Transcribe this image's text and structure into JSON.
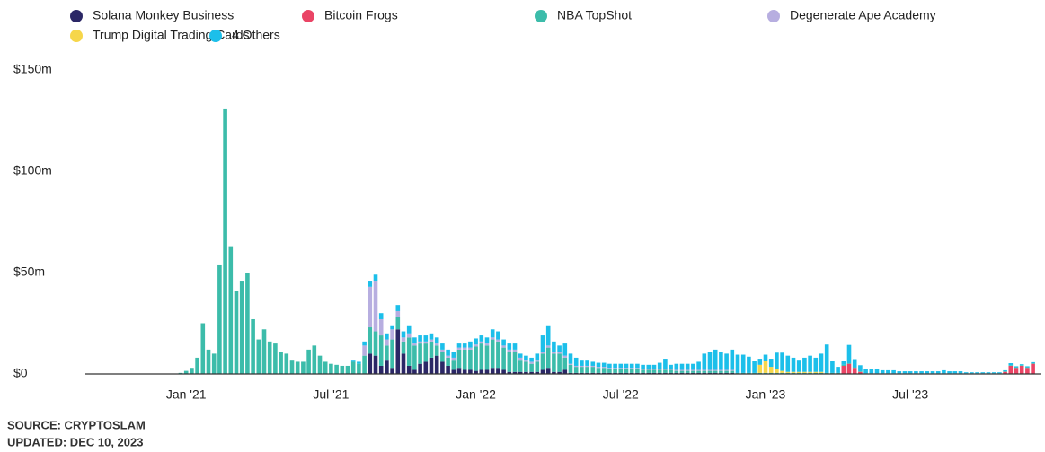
{
  "chart_data": {
    "type": "stacked_bar",
    "categories": [
      null,
      "Jan '21",
      null,
      null,
      null,
      null,
      null,
      null,
      null,
      null,
      null,
      null,
      null,
      null,
      null,
      null,
      null,
      null,
      null,
      null,
      null,
      null,
      null,
      null,
      null,
      null,
      null,
      "Jul '21",
      null,
      null,
      null,
      null,
      null,
      null,
      null,
      null,
      null,
      null,
      null,
      null,
      null,
      null,
      null,
      null,
      null,
      null,
      null,
      null,
      null,
      null,
      null,
      null,
      null,
      "Jan '22",
      null,
      null,
      null,
      null,
      null,
      null,
      null,
      null,
      null,
      null,
      null,
      null,
      null,
      null,
      null,
      null,
      null,
      null,
      null,
      null,
      null,
      null,
      null,
      null,
      null,
      "Jul '22",
      null,
      null,
      null,
      null,
      null,
      null,
      null,
      null,
      null,
      null,
      null,
      null,
      null,
      null,
      null,
      null,
      null,
      null,
      null,
      null,
      null,
      null,
      null,
      null,
      null,
      "Jan '23",
      null,
      null,
      null,
      null,
      null,
      null,
      null,
      null,
      null,
      null,
      null,
      null,
      null,
      null,
      null,
      null,
      null,
      null,
      null,
      null,
      null,
      null,
      null,
      null,
      null,
      "Jul '23",
      null,
      null,
      null,
      null,
      null,
      null,
      null,
      null,
      null,
      null,
      null,
      null,
      null,
      null,
      null,
      null,
      null,
      null,
      null,
      null,
      null,
      null
    ],
    "ylim": [
      0,
      150
    ],
    "yticks": [
      {
        "value": 0,
        "label": "$0"
      },
      {
        "value": 50,
        "label": "$50m"
      },
      {
        "value": 100,
        "label": "$100m"
      },
      {
        "value": 150,
        "label": "$150m"
      }
    ],
    "grid": false,
    "series": [
      {
        "name": "Solana Monkey Business",
        "color": "#2b2766",
        "values": [
          0,
          0,
          0,
          0,
          0,
          0,
          0,
          0,
          0,
          0,
          0,
          0,
          0,
          0,
          0,
          0,
          0,
          0,
          0,
          0,
          0,
          0,
          0,
          0,
          0,
          0,
          0,
          0,
          0,
          0,
          0,
          0,
          0,
          0,
          10,
          9,
          4,
          7,
          3,
          22,
          10,
          4,
          2,
          5,
          6,
          8,
          9,
          6,
          4,
          2,
          3,
          2,
          2,
          1.5,
          2,
          2,
          3,
          3,
          2,
          1,
          1,
          1,
          1,
          1,
          1,
          2,
          3,
          1,
          1,
          2,
          0.5,
          0.5,
          0.5,
          0.5,
          0.5,
          0.5,
          0.5,
          0.5,
          0.5,
          0.5,
          0.5,
          0.5,
          0.5,
          0.5,
          0.5,
          0.5,
          0.5,
          0.5,
          0.5,
          0.5,
          0.5,
          0.5,
          0.5,
          0.5,
          0.5,
          0.5,
          0.5,
          0.5,
          0.5,
          0.5,
          0,
          0,
          0,
          0,
          0,
          0,
          0,
          0,
          0,
          0,
          0,
          0,
          0,
          0,
          0,
          0,
          0,
          0,
          0,
          0,
          0,
          0,
          0,
          0,
          0,
          0,
          0,
          0,
          0,
          0,
          0,
          0,
          0,
          0,
          0,
          0,
          0,
          0,
          0,
          0,
          0,
          0,
          0,
          0,
          0,
          0,
          0,
          0,
          0,
          0,
          0,
          0,
          0,
          0
        ]
      },
      {
        "name": "Bitcoin Frogs",
        "color": "#ea4465",
        "values": [
          0,
          0,
          0,
          0,
          0,
          0,
          0,
          0,
          0,
          0,
          0,
          0,
          0,
          0,
          0,
          0,
          0,
          0,
          0,
          0,
          0,
          0,
          0,
          0,
          0,
          0,
          0,
          0,
          0,
          0,
          0,
          0,
          0,
          0,
          0,
          0,
          0,
          0,
          0,
          0,
          0,
          0,
          0,
          0,
          0,
          0,
          0,
          0,
          0,
          0,
          0,
          0,
          0,
          0,
          0,
          0,
          0,
          0,
          0,
          0,
          0,
          0,
          0,
          0,
          0,
          0,
          0,
          0,
          0,
          0,
          0,
          0,
          0,
          0,
          0,
          0,
          0,
          0,
          0,
          0,
          0,
          0,
          0,
          0,
          0,
          0,
          0,
          0,
          0,
          0,
          0,
          0,
          0,
          0,
          0,
          0,
          0,
          0,
          0,
          0,
          0,
          0,
          0,
          0,
          0,
          0,
          0,
          0,
          0,
          0,
          0,
          0,
          0,
          0,
          0,
          0,
          0,
          0,
          0,
          4,
          5,
          3,
          1,
          0,
          0,
          0,
          0,
          0,
          0,
          0,
          0,
          0,
          0,
          0,
          0,
          0,
          0,
          0,
          0,
          0,
          0,
          0,
          0,
          0,
          0,
          0,
          0,
          0,
          1,
          4,
          3,
          4,
          3,
          5
        ]
      },
      {
        "name": "NBA TopShot",
        "color": "#3cbcaa",
        "values": [
          0.5,
          1.5,
          3,
          8,
          25,
          12,
          10,
          54,
          131,
          63,
          41,
          46,
          50,
          27,
          17,
          22,
          16,
          15,
          11,
          10,
          7,
          6,
          6,
          12,
          14,
          9,
          6,
          5,
          4.5,
          4,
          4,
          6,
          5,
          9,
          13,
          12,
          15,
          7,
          14,
          6,
          6,
          14,
          12,
          10,
          9,
          8,
          5,
          5,
          4,
          5,
          9,
          10,
          10,
          12,
          13,
          12,
          14,
          13,
          11,
          10,
          10,
          6,
          5,
          4,
          5,
          8,
          10,
          9,
          9,
          6,
          4,
          3,
          3,
          3,
          3,
          2.5,
          2.5,
          2,
          2,
          2,
          2,
          2,
          2,
          1.5,
          1.5,
          1.5,
          1.5,
          1.5,
          1.5,
          1,
          1,
          1,
          1,
          1,
          1,
          1,
          1,
          1,
          1,
          1,
          0.5,
          0.5,
          0.5,
          0.5,
          0.5,
          0.5,
          0.5,
          0.5,
          0.5,
          0.5,
          0.5,
          0.5,
          0.5,
          0.5,
          0.5,
          0.5,
          0.5,
          0.5,
          0.5,
          0.5,
          0.3,
          0.3,
          0.3,
          0.3,
          0.3,
          0.3,
          0.3,
          0.3,
          0.3,
          0.3,
          0.3,
          0.3,
          0.3,
          0.3,
          0.3,
          0.3,
          0.3,
          0.3,
          0.3,
          0.3,
          0.3,
          0.3,
          0.3,
          0.3,
          0.3,
          0.3,
          0.3,
          0.3,
          0.3,
          0.3,
          0.3,
          0.3,
          0.3,
          0.3
        ]
      },
      {
        "name": "Degenerate Ape Academy",
        "color": "#b7aee0",
        "values": [
          0,
          0,
          0,
          0,
          0,
          0,
          0,
          0,
          0,
          0,
          0,
          0,
          0,
          0,
          0,
          0,
          0,
          0,
          0,
          0,
          0,
          0,
          0,
          0,
          0,
          0,
          0,
          0,
          0,
          0,
          0,
          0,
          0,
          5,
          20,
          25,
          8,
          3,
          5,
          3,
          2,
          2,
          1,
          1,
          1,
          1,
          1,
          1,
          1,
          1,
          1,
          1,
          1,
          1,
          1,
          1,
          1,
          1,
          1,
          1,
          1,
          1,
          1,
          1,
          1,
          1,
          1,
          1,
          1,
          1,
          0.5,
          0.5,
          0.5,
          0.5,
          0.5,
          0.5,
          0.5,
          0.5,
          0.5,
          0.5,
          0.5,
          0.5,
          0.5,
          0.5,
          0.5,
          0.5,
          0.5,
          0.5,
          0.5,
          0.5,
          0.5,
          0.5,
          0.5,
          0.5,
          0.5,
          0.5,
          0.5,
          0.5,
          0.5,
          0.5,
          0,
          0,
          0,
          0,
          0,
          0,
          0,
          0,
          0,
          0,
          0,
          0,
          0,
          0,
          0,
          0,
          0,
          0,
          0,
          0,
          0,
          0,
          0,
          0,
          0,
          0,
          0,
          0,
          0,
          0,
          0,
          0,
          0,
          0,
          0,
          0,
          0,
          0,
          0,
          0,
          0,
          0,
          0,
          0,
          0,
          0,
          0,
          0,
          0,
          0,
          0,
          0,
          0,
          0
        ]
      },
      {
        "name": "Trump Digital Trading Cards",
        "color": "#f6d64a",
        "values": [
          0,
          0,
          0,
          0,
          0,
          0,
          0,
          0,
          0,
          0,
          0,
          0,
          0,
          0,
          0,
          0,
          0,
          0,
          0,
          0,
          0,
          0,
          0,
          0,
          0,
          0,
          0,
          0,
          0,
          0,
          0,
          0,
          0,
          0,
          0,
          0,
          0,
          0,
          0,
          0,
          0,
          0,
          0,
          0,
          0,
          0,
          0,
          0,
          0,
          0,
          0,
          0,
          0,
          0,
          0,
          0,
          0,
          0,
          0,
          0,
          0,
          0,
          0,
          0,
          0,
          0,
          0,
          0,
          0,
          0,
          0,
          0,
          0,
          0,
          0,
          0,
          0,
          0,
          0,
          0,
          0,
          0,
          0,
          0,
          0,
          0,
          0,
          0,
          0,
          0,
          0,
          0,
          0,
          0,
          0,
          0,
          0,
          0,
          0,
          0,
          0,
          0,
          0,
          0,
          4,
          6,
          3,
          2,
          1,
          0.5,
          0.5,
          0.5,
          0.5,
          0.5,
          0.5,
          0.5,
          0,
          0,
          0,
          0,
          0,
          0,
          0,
          0,
          0,
          0,
          0,
          0,
          0,
          0,
          0,
          0,
          0,
          0,
          0,
          0,
          0,
          0,
          0,
          0,
          0,
          0,
          0,
          0,
          0,
          0,
          0,
          0,
          0,
          0,
          0,
          0,
          0,
          0
        ]
      },
      {
        "name": "4 Others",
        "color": "#1cbfea",
        "values": [
          0,
          0,
          0,
          0,
          0,
          0,
          0,
          0,
          0,
          0,
          0,
          0,
          0,
          0,
          0,
          0,
          0,
          0,
          0,
          0,
          0,
          0,
          0,
          0,
          0,
          0,
          0,
          0,
          0,
          0,
          0,
          1,
          1,
          2,
          3,
          3,
          3,
          3,
          2,
          3,
          3,
          4,
          3,
          3,
          3,
          3,
          3,
          3,
          3,
          3,
          2,
          2,
          3,
          3,
          3,
          3,
          4,
          4,
          3,
          3,
          3,
          2,
          2,
          2,
          3,
          8,
          10,
          5,
          3,
          6,
          5,
          4,
          3,
          3,
          2,
          2,
          2,
          2,
          2,
          2,
          2,
          2,
          2,
          2,
          2,
          2,
          3,
          5,
          2,
          3,
          3,
          3,
          3,
          4,
          8,
          9,
          10,
          9,
          8,
          10,
          9,
          9,
          8,
          6,
          3,
          3,
          4,
          8,
          9,
          8,
          7,
          6,
          7,
          8,
          7,
          9,
          14,
          6,
          3,
          2,
          9,
          4,
          3,
          2,
          2,
          2,
          1.5,
          1.5,
          1.5,
          1,
          1,
          1,
          1,
          1,
          1,
          1,
          1,
          1.5,
          1,
          1,
          1,
          0.5,
          0.5,
          0.5,
          0.5,
          0.5,
          0.5,
          0.5,
          0.5,
          1,
          0.5,
          0.5,
          0.5,
          0.5
        ]
      }
    ]
  },
  "source": "SOURCE: CRYPTOSLAM",
  "updated": "UPDATED: DEC 10, 2023"
}
